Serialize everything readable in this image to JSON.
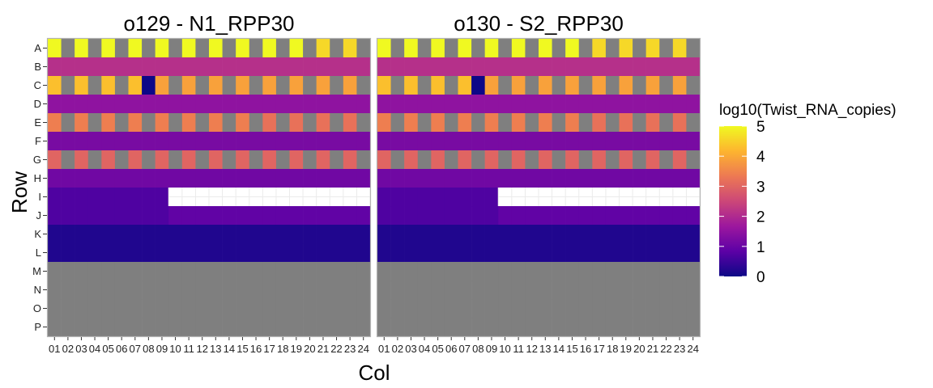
{
  "chart_data": {
    "type": "heatmap",
    "xlabel": "Col",
    "ylabel": "Row",
    "columns": [
      "01",
      "02",
      "03",
      "04",
      "05",
      "06",
      "07",
      "08",
      "09",
      "10",
      "11",
      "12",
      "13",
      "14",
      "15",
      "16",
      "17",
      "18",
      "19",
      "20",
      "21",
      "22",
      "23",
      "24"
    ],
    "rows": [
      "A",
      "B",
      "C",
      "D",
      "E",
      "F",
      "G",
      "H",
      "I",
      "J",
      "K",
      "L",
      "M",
      "N",
      "O",
      "P"
    ],
    "color_scale": {
      "title": "log10(Twist_RNA_copies)",
      "min": 0,
      "max": 5,
      "ticks": [
        0,
        1,
        2,
        3,
        4,
        5
      ],
      "tick_labels": [
        "0",
        "1",
        "2",
        "3",
        "4",
        "5"
      ],
      "colormap": "plasma",
      "stops": [
        "#0d0887",
        "#5c01a6",
        "#9c179e",
        "#cc4778",
        "#ed7953",
        "#fdb42f",
        "#f0f921"
      ]
    },
    "na_color": "#7f7f7f",
    "empty_color": "#ffffff",
    "panels": [
      {
        "title": "o129 - N1_RPP30",
        "row_patterns": {
          "A": {
            "odd": 5.0,
            "even": null,
            "overrides": {
              "21": 4.6,
              "23": 4.6
            }
          },
          "B": {
            "all": 2.1
          },
          "C": {
            "odd": 4.3,
            "even": null,
            "overrides": {
              "08": 0.0,
              "09": 3.9,
              "11": 3.9,
              "13": 3.9,
              "15": 3.9,
              "17": 3.9,
              "19": 3.9,
              "21": 3.9,
              "23": 3.9
            }
          },
          "D": {
            "all": 1.5
          },
          "E": {
            "odd": 3.4,
            "even": null,
            "overrides": {
              "17": 3.2,
              "19": 3.2,
              "21": 3.2,
              "23": 3.2
            }
          },
          "F": {
            "all": 1.2
          },
          "G": {
            "odd": 3.0,
            "even": null
          },
          "H": {
            "all": 1.1
          },
          "I": {
            "all": 0.7,
            "empty_from": "10"
          },
          "J": {
            "all": 0.7,
            "overrides": {
              "10": 0.9,
              "11": 0.9,
              "12": 0.9,
              "13": 0.9,
              "14": 0.9,
              "15": 0.9,
              "16": 0.9,
              "17": 0.9,
              "18": 0.9,
              "19": 0.9,
              "20": 0.9,
              "21": 0.9,
              "22": 0.9,
              "23": 0.9,
              "24": 0.9
            }
          },
          "K": {
            "all": 0.2
          },
          "L": {
            "all": 0.2
          },
          "M": {
            "all": null
          },
          "N": {
            "all": null
          },
          "O": {
            "all": null
          },
          "P": {
            "all": null
          }
        }
      },
      {
        "title": "o130 - S2_RPP30",
        "row_patterns": {
          "A": {
            "odd": 5.0,
            "even": null,
            "overrides": {
              "17": 4.6,
              "19": 4.6,
              "21": 4.6,
              "23": 4.6
            }
          },
          "B": {
            "all": 2.1
          },
          "C": {
            "odd": 4.3,
            "even": null,
            "overrides": {
              "08": 0.0,
              "09": 3.9,
              "11": 3.9,
              "13": 3.9,
              "15": 3.9,
              "17": 3.9,
              "19": 3.9,
              "21": 3.9,
              "23": 3.9
            }
          },
          "D": {
            "all": 1.5
          },
          "E": {
            "odd": 3.4,
            "even": null,
            "overrides": {
              "17": 3.2,
              "19": 3.2,
              "21": 3.2,
              "23": 3.2
            }
          },
          "F": {
            "all": 1.2
          },
          "G": {
            "odd": 3.0,
            "even": null
          },
          "H": {
            "all": 1.1
          },
          "I": {
            "all": 0.7,
            "empty_from": "10"
          },
          "J": {
            "all": 0.7,
            "overrides": {
              "10": 0.9,
              "11": 0.9,
              "12": 0.9,
              "13": 0.9,
              "14": 0.9,
              "15": 0.9,
              "16": 0.9,
              "17": 0.9,
              "18": 0.9,
              "19": 0.9,
              "20": 0.9,
              "21": 0.9,
              "22": 0.9,
              "23": 0.9,
              "24": 0.9
            }
          },
          "K": {
            "all": 0.2
          },
          "L": {
            "all": 0.2
          },
          "M": {
            "all": null
          },
          "N": {
            "all": null
          },
          "O": {
            "all": null
          },
          "P": {
            "all": null
          }
        }
      }
    ],
    "legend_position": "right",
    "grid": false
  }
}
